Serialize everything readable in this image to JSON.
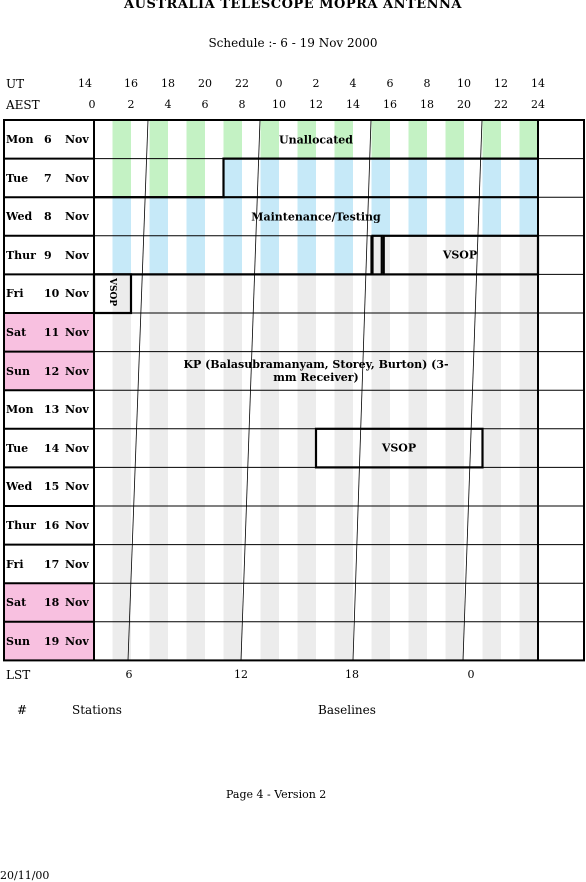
{
  "title": "AUSTRALIA TELESCOPE MOPRA ANTENNA",
  "subtitle": "Schedule :- 6 - 19 Nov 2000",
  "ut_label": "UT",
  "ut_ticks": [
    "14",
    "16",
    "18",
    "20",
    "22",
    "0",
    "2",
    "4",
    "6",
    "8",
    "10",
    "12",
    "14"
  ],
  "aest_label": "AEST",
  "aest_ticks": [
    "0",
    "2",
    "4",
    "6",
    "8",
    "10",
    "12",
    "14",
    "16",
    "18",
    "20",
    "22",
    "24"
  ],
  "lst_label": "LST",
  "lst_ticks": [
    "6",
    "12",
    "18",
    "0"
  ],
  "days": [
    {
      "name": "Mon",
      "date": "6",
      "month": "Nov",
      "weekend": false
    },
    {
      "name": "Tue",
      "date": "7",
      "month": "Nov",
      "weekend": false
    },
    {
      "name": "Wed",
      "date": "8",
      "month": "Nov",
      "weekend": false
    },
    {
      "name": "Thur",
      "date": "9",
      "month": "Nov",
      "weekend": false
    },
    {
      "name": "Fri",
      "date": "10",
      "month": "Nov",
      "weekend": false
    },
    {
      "name": "Sat",
      "date": "11",
      "month": "Nov",
      "weekend": true
    },
    {
      "name": "Sun",
      "date": "12",
      "month": "Nov",
      "weekend": true
    },
    {
      "name": "Mon",
      "date": "13",
      "month": "Nov",
      "weekend": false
    },
    {
      "name": "Tue",
      "date": "14",
      "month": "Nov",
      "weekend": false
    },
    {
      "name": "Wed",
      "date": "15",
      "month": "Nov",
      "weekend": false
    },
    {
      "name": "Thur",
      "date": "16",
      "month": "Nov",
      "weekend": false
    },
    {
      "name": "Fri",
      "date": "17",
      "month": "Nov",
      "weekend": false
    },
    {
      "name": "Sat",
      "date": "18",
      "month": "Nov",
      "weekend": true
    },
    {
      "name": "Sun",
      "date": "19",
      "month": "Nov",
      "weekend": true
    }
  ],
  "events": {
    "unallocated": "Unallocated",
    "maintenance": "Maintenance/Testing",
    "vsop_1": "VSOP",
    "vsop_fri": "VSOP",
    "kp": "KP (Balasubramanyam, Storey, Burton) (3-mm Receiver)",
    "vsop_2": "VSOP"
  },
  "colors": {
    "unallocated": "#c4f2c4",
    "maintenance": "#c6e9f8",
    "observing": "#ececec",
    "weekend": "#f8c0e0"
  },
  "footer": {
    "hash": "#",
    "stations": "Stations",
    "baselines": "Baselines",
    "page": "Page 4 - Version 2",
    "date": "20/11/00"
  }
}
